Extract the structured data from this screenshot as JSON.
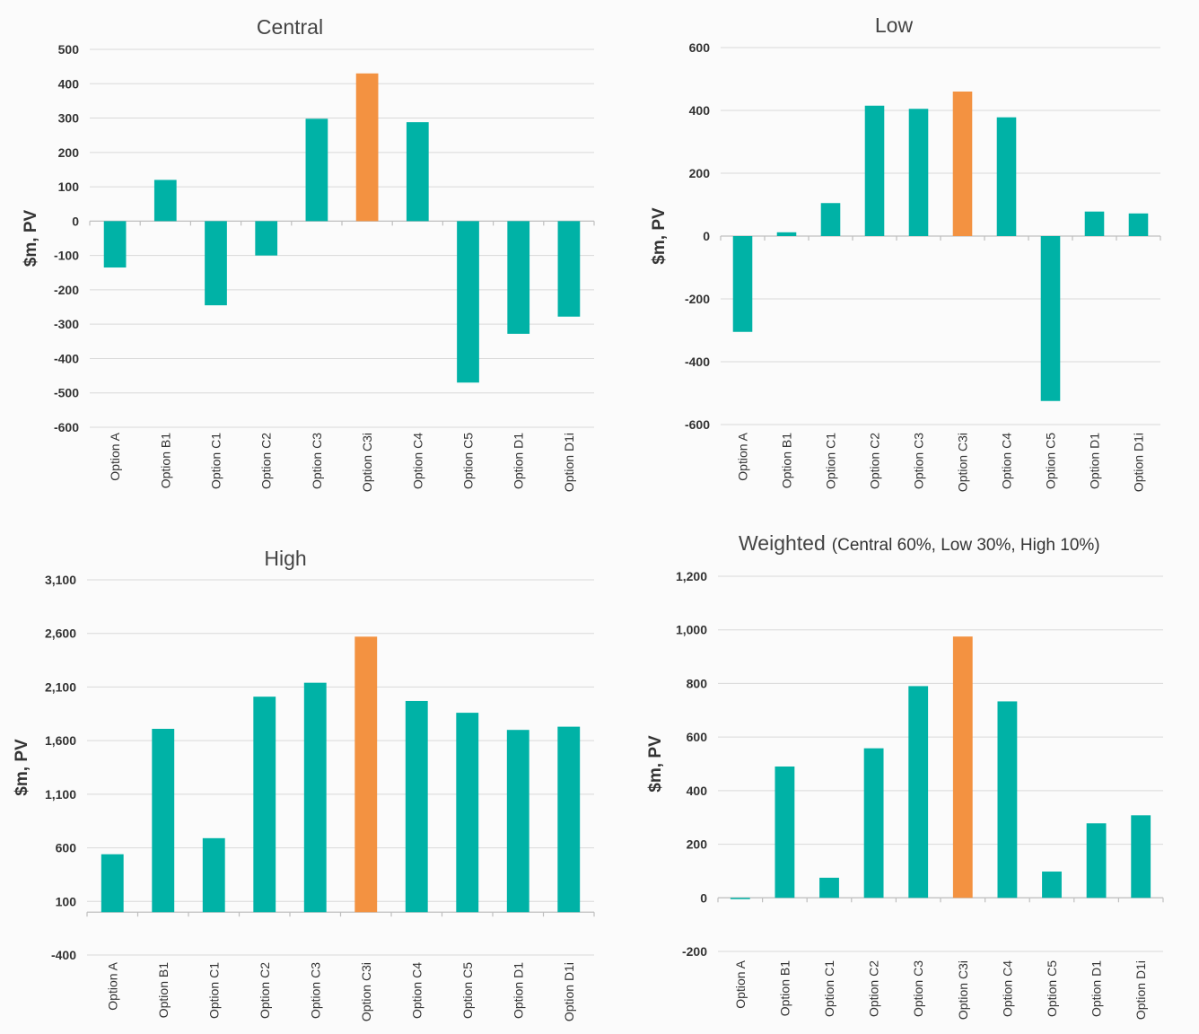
{
  "colors": {
    "bar": "#00b2a6",
    "highlight": "#f39241",
    "grid": "#d9d9d9",
    "axis": "#bfbfbf",
    "background": "#fbfbfb"
  },
  "chart_data": [
    {
      "type": "bar",
      "title": "Central",
      "title_note": "",
      "ylabel": "$m, PV",
      "categories": [
        "Option A",
        "Option B1",
        "Option C1",
        "Option C2",
        "Option C3",
        "Option C3i",
        "Option C4",
        "Option C5",
        "Option D1",
        "Option D1i"
      ],
      "values": [
        -135,
        120,
        -245,
        -100,
        298,
        430,
        288,
        -470,
        -328,
        -278
      ],
      "highlight_index": 5,
      "ylim": [
        -600,
        500
      ],
      "yticks": [
        500,
        400,
        300,
        200,
        100,
        0,
        -100,
        -200,
        -300,
        -400,
        -500,
        -600
      ],
      "ytick_labels": [
        "500",
        "400",
        "300",
        "200",
        "100",
        "0",
        "-100",
        "-200",
        "-300",
        "-400",
        "-500",
        "-600"
      ],
      "grid": true
    },
    {
      "type": "bar",
      "title": "Low",
      "title_note": "",
      "ylabel": "$m, PV",
      "categories": [
        "Option A",
        "Option B1",
        "Option C1",
        "Option C2",
        "Option C3",
        "Option C3i",
        "Option C4",
        "Option C5",
        "Option D1",
        "Option D1i"
      ],
      "values": [
        -305,
        12,
        105,
        415,
        405,
        460,
        378,
        -525,
        78,
        72
      ],
      "highlight_index": 5,
      "ylim": [
        -600,
        600
      ],
      "yticks": [
        600,
        400,
        200,
        0,
        -200,
        -400,
        -600
      ],
      "ytick_labels": [
        "600",
        "400",
        "200",
        "0",
        "-200",
        "-400",
        "-600"
      ],
      "grid": true
    },
    {
      "type": "bar",
      "title": "High",
      "title_note": "",
      "ylabel": "$m, PV",
      "categories": [
        "Option A",
        "Option B1",
        "Option C1",
        "Option C2",
        "Option C3",
        "Option C3i",
        "Option C4",
        "Option C5",
        "Option D1",
        "Option D1i"
      ],
      "values": [
        540,
        1710,
        690,
        2010,
        2140,
        2570,
        1970,
        1860,
        1700,
        1730
      ],
      "highlight_index": 5,
      "baseline": 0,
      "ylim": [
        -400,
        3100
      ],
      "yticks": [
        3100,
        2600,
        2100,
        1600,
        1100,
        600,
        100,
        -400
      ],
      "ytick_labels": [
        "3,100",
        "2,600",
        "2,100",
        "1,600",
        "1,100",
        "600",
        "100",
        "-400"
      ],
      "grid": true
    },
    {
      "type": "bar",
      "title": "Weighted",
      "title_note": "(Central 60%, Low 30%, High 10%)",
      "ylabel": "$m, PV",
      "categories": [
        "Option A",
        "Option B1",
        "Option C1",
        "Option C2",
        "Option C3",
        "Option C3i",
        "Option C4",
        "Option C5",
        "Option D1",
        "Option D1i"
      ],
      "values": [
        -5,
        490,
        75,
        558,
        790,
        975,
        733,
        98,
        278,
        308
      ],
      "highlight_index": 5,
      "ylim": [
        -200,
        1200
      ],
      "yticks": [
        1200,
        1000,
        800,
        600,
        400,
        200,
        0,
        -200
      ],
      "ytick_labels": [
        "1,200",
        "1,000",
        "800",
        "600",
        "400",
        "200",
        "0",
        "-200"
      ],
      "grid": true
    }
  ]
}
